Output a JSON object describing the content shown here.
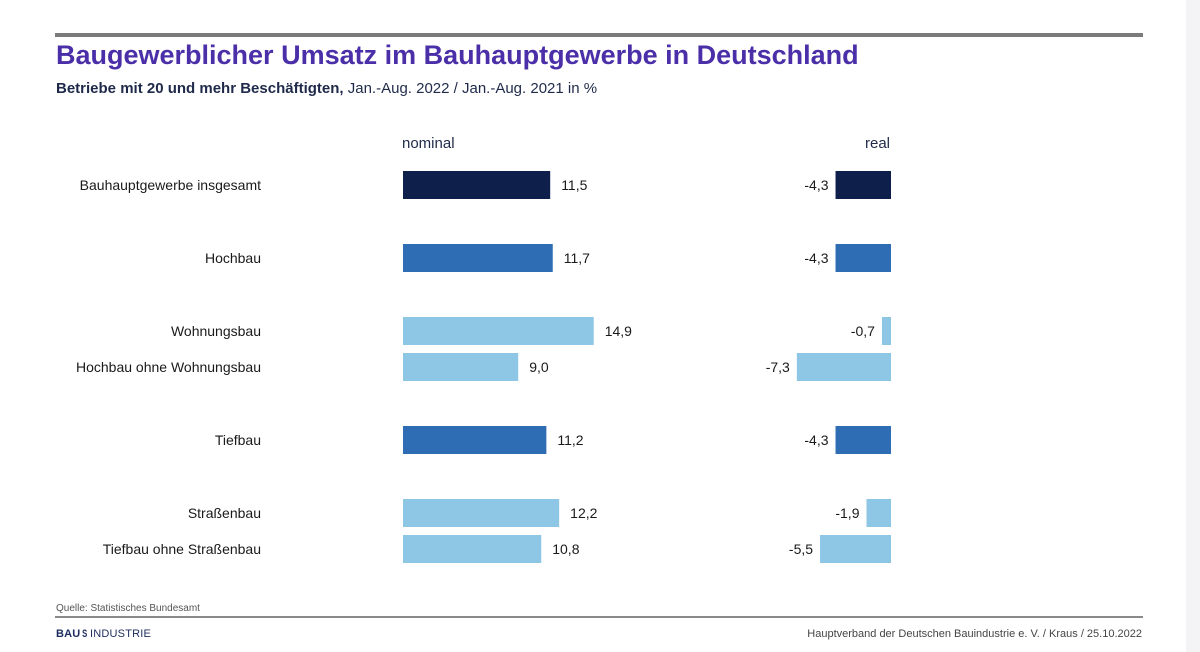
{
  "header": {
    "title": "Baugewerblicher Umsatz im Bauhauptgewerbe in Deutschland",
    "subtitle_bold": "Betriebe mit 20 und mehr Beschäftigten,",
    "subtitle_rest": " Jan.-Aug. 2022 / Jan.-Aug. 2021 in %"
  },
  "chart_data": {
    "type": "bar",
    "orientation": "horizontal",
    "panels": [
      "nominal",
      "real"
    ],
    "categories": [
      "Bauhauptgewerbe insgesamt",
      "Hochbau",
      "Wohnungsbau",
      "Hochbau ohne Wohnungsbau",
      "Tiefbau",
      "Straßenbau",
      "Tiefbau ohne Straßenbau"
    ],
    "series": [
      {
        "name": "nominal",
        "values": [
          11.5,
          11.7,
          14.9,
          9.0,
          11.2,
          12.2,
          10.8
        ],
        "labels": [
          "11,5",
          "11,7",
          "14,9",
          "9,0",
          "11,2",
          "12,2",
          "10,8"
        ]
      },
      {
        "name": "real",
        "values": [
          -4.3,
          -4.3,
          -0.7,
          -7.3,
          -4.3,
          -1.9,
          -5.5
        ],
        "labels": [
          "-4,3",
          "-4,3",
          "-0,7",
          "-7,3",
          "-4,3",
          "-1,9",
          "-5,5"
        ]
      }
    ],
    "bar_colors": [
      "#0f1f4b",
      "#2e6db4",
      "#8ec6e6",
      "#8ec6e6",
      "#2e6db4",
      "#8ec6e6",
      "#8ec6e6"
    ],
    "grid": false,
    "legend": "none"
  },
  "footer": {
    "source": "Quelle: Statistisches Bundesamt",
    "logo_a": "BAU",
    "logo_mark": "S",
    "logo_b": "INDUSTRIE",
    "credit": "Hauptverband  der Deutschen Bauindustrie e. V. / Kraus  / 25.10.2022"
  }
}
